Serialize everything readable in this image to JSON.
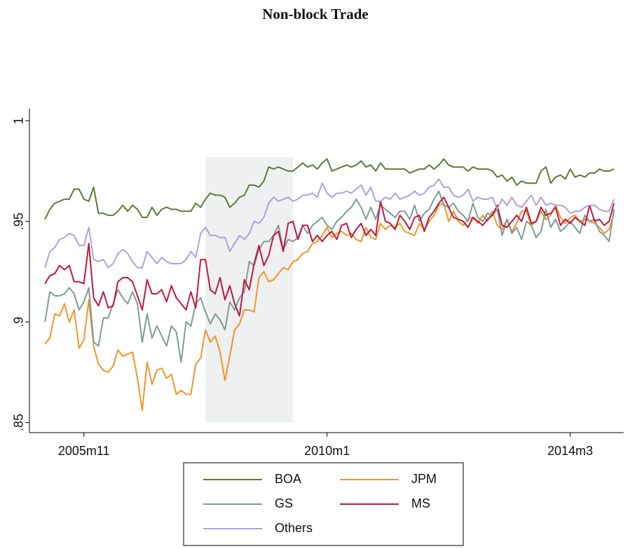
{
  "chart_data": {
    "type": "line",
    "title": "Non-block Trade",
    "x": [
      542,
      543,
      544,
      545,
      546,
      547,
      548,
      549,
      550,
      551,
      552,
      553,
      554,
      555,
      556,
      557,
      558,
      559,
      560,
      561,
      562,
      563,
      564,
      565,
      566,
      567,
      568,
      569,
      570,
      571,
      572,
      573,
      574,
      575,
      576,
      577,
      578,
      579,
      580,
      581,
      582,
      583,
      584,
      585,
      586,
      587,
      588,
      589,
      590,
      591,
      592,
      593,
      594,
      595,
      596,
      597,
      598,
      599,
      600,
      601,
      602,
      603,
      604,
      605,
      606,
      607,
      608,
      609,
      610,
      611,
      612,
      613,
      614,
      615,
      616,
      617,
      618,
      619,
      620,
      621,
      622,
      623,
      624,
      625,
      626,
      627,
      628,
      629,
      630,
      631,
      632,
      633,
      634,
      635,
      636,
      637,
      638,
      639,
      640,
      641,
      642,
      643,
      644,
      645,
      646,
      647,
      648,
      649,
      650,
      651,
      652,
      653,
      654,
      655,
      656,
      657,
      658,
      659
    ],
    "series": [
      {
        "name": "BOA",
        "color": "#5b7b36",
        "values": [
          0.951,
          0.956,
          0.959,
          0.96,
          0.961,
          0.961,
          0.966,
          0.966,
          0.961,
          0.96,
          0.967,
          0.954,
          0.954,
          0.953,
          0.953,
          0.955,
          0.958,
          0.955,
          0.958,
          0.956,
          0.952,
          0.952,
          0.957,
          0.953,
          0.956,
          0.957,
          0.956,
          0.956,
          0.955,
          0.955,
          0.955,
          0.959,
          0.957,
          0.961,
          0.964,
          0.963,
          0.963,
          0.962,
          0.957,
          0.959,
          0.962,
          0.963,
          0.968,
          0.968,
          0.967,
          0.97,
          0.977,
          0.976,
          0.977,
          0.976,
          0.975,
          0.975,
          0.977,
          0.979,
          0.977,
          0.978,
          0.976,
          0.979,
          0.981,
          0.975,
          0.976,
          0.977,
          0.978,
          0.977,
          0.978,
          0.98,
          0.977,
          0.978,
          0.975,
          0.979,
          0.976,
          0.976,
          0.976,
          0.976,
          0.976,
          0.974,
          0.975,
          0.976,
          0.976,
          0.978,
          0.976,
          0.978,
          0.981,
          0.978,
          0.977,
          0.977,
          0.977,
          0.975,
          0.977,
          0.976,
          0.976,
          0.976,
          0.975,
          0.972,
          0.973,
          0.97,
          0.972,
          0.968,
          0.97,
          0.969,
          0.969,
          0.969,
          0.975,
          0.977,
          0.969,
          0.972,
          0.973,
          0.971,
          0.976,
          0.972,
          0.973,
          0.972,
          0.974,
          0.974,
          0.976,
          0.975,
          0.975,
          0.976
        ]
      },
      {
        "name": "JPM",
        "color": "#f0962a",
        "values": [
          0.889,
          0.892,
          0.904,
          0.903,
          0.909,
          0.9,
          0.906,
          0.887,
          0.891,
          0.911,
          0.888,
          0.879,
          0.876,
          0.875,
          0.878,
          0.886,
          0.883,
          0.884,
          0.885,
          0.872,
          0.856,
          0.88,
          0.869,
          0.876,
          0.877,
          0.872,
          0.874,
          0.864,
          0.866,
          0.864,
          0.864,
          0.879,
          0.882,
          0.896,
          0.89,
          0.893,
          0.885,
          0.871,
          0.883,
          0.896,
          0.899,
          0.906,
          0.906,
          0.905,
          0.922,
          0.925,
          0.92,
          0.921,
          0.924,
          0.927,
          0.926,
          0.93,
          0.931,
          0.934,
          0.935,
          0.939,
          0.94,
          0.943,
          0.947,
          0.942,
          0.944,
          0.945,
          0.943,
          0.944,
          0.941,
          0.94,
          0.947,
          0.942,
          0.941,
          0.949,
          0.946,
          0.948,
          0.947,
          0.949,
          0.945,
          0.944,
          0.943,
          0.949,
          0.946,
          0.95,
          0.953,
          0.958,
          0.959,
          0.95,
          0.955,
          0.95,
          0.948,
          0.951,
          0.952,
          0.949,
          0.953,
          0.95,
          0.955,
          0.948,
          0.946,
          0.951,
          0.945,
          0.949,
          0.955,
          0.955,
          0.948,
          0.95,
          0.955,
          0.951,
          0.953,
          0.958,
          0.952,
          0.949,
          0.952,
          0.953,
          0.95,
          0.951,
          0.95,
          0.949,
          0.947,
          0.944,
          0.946,
          0.954
        ]
      },
      {
        "name": "GS",
        "color": "#7f9c92",
        "values": [
          0.9,
          0.915,
          0.913,
          0.913,
          0.914,
          0.917,
          0.914,
          0.906,
          0.91,
          0.917,
          0.89,
          0.888,
          0.902,
          0.902,
          0.909,
          0.916,
          0.912,
          0.909,
          0.915,
          0.909,
          0.89,
          0.904,
          0.892,
          0.898,
          0.893,
          0.888,
          0.898,
          0.895,
          0.88,
          0.9,
          0.898,
          0.909,
          0.912,
          0.905,
          0.899,
          0.904,
          0.901,
          0.896,
          0.91,
          0.906,
          0.912,
          0.915,
          0.93,
          0.928,
          0.936,
          0.94,
          0.94,
          0.943,
          0.948,
          0.936,
          0.941,
          0.94,
          0.942,
          0.948,
          0.944,
          0.948,
          0.95,
          0.952,
          0.948,
          0.946,
          0.95,
          0.952,
          0.955,
          0.957,
          0.961,
          0.957,
          0.951,
          0.957,
          0.951,
          0.958,
          0.956,
          0.954,
          0.952,
          0.955,
          0.955,
          0.951,
          0.958,
          0.95,
          0.954,
          0.956,
          0.961,
          0.965,
          0.958,
          0.957,
          0.959,
          0.955,
          0.953,
          0.95,
          0.959,
          0.952,
          0.95,
          0.954,
          0.953,
          0.956,
          0.943,
          0.951,
          0.944,
          0.947,
          0.941,
          0.95,
          0.948,
          0.942,
          0.945,
          0.956,
          0.947,
          0.951,
          0.945,
          0.947,
          0.95,
          0.947,
          0.944,
          0.953,
          0.95,
          0.951,
          0.945,
          0.943,
          0.94,
          0.956
        ]
      },
      {
        "name": "MS",
        "color": "#c0183f",
        "values": [
          0.919,
          0.923,
          0.924,
          0.928,
          0.926,
          0.928,
          0.92,
          0.92,
          0.919,
          0.939,
          0.912,
          0.908,
          0.915,
          0.907,
          0.908,
          0.92,
          0.922,
          0.922,
          0.92,
          0.913,
          0.906,
          0.921,
          0.914,
          0.914,
          0.916,
          0.91,
          0.918,
          0.912,
          0.909,
          0.906,
          0.915,
          0.907,
          0.931,
          0.931,
          0.916,
          0.914,
          0.922,
          0.911,
          0.918,
          0.909,
          0.903,
          0.921,
          0.916,
          0.929,
          0.938,
          0.928,
          0.933,
          0.943,
          0.945,
          0.935,
          0.949,
          0.95,
          0.941,
          0.948,
          0.948,
          0.94,
          0.943,
          0.94,
          0.943,
          0.945,
          0.941,
          0.948,
          0.949,
          0.942,
          0.946,
          0.949,
          0.943,
          0.946,
          0.943,
          0.96,
          0.95,
          0.949,
          0.946,
          0.953,
          0.95,
          0.946,
          0.952,
          0.953,
          0.945,
          0.952,
          0.955,
          0.959,
          0.962,
          0.957,
          0.952,
          0.951,
          0.95,
          0.947,
          0.952,
          0.95,
          0.948,
          0.951,
          0.953,
          0.958,
          0.948,
          0.947,
          0.95,
          0.953,
          0.95,
          0.957,
          0.949,
          0.95,
          0.957,
          0.953,
          0.954,
          0.957,
          0.948,
          0.951,
          0.949,
          0.952,
          0.95,
          0.948,
          0.958,
          0.95,
          0.951,
          0.948,
          0.95,
          0.959
        ]
      },
      {
        "name": "Others",
        "color": "#a9a4dc",
        "values": [
          0.927,
          0.935,
          0.937,
          0.941,
          0.942,
          0.944,
          0.943,
          0.938,
          0.938,
          0.947,
          0.931,
          0.93,
          0.931,
          0.927,
          0.929,
          0.934,
          0.936,
          0.934,
          0.93,
          0.927,
          0.927,
          0.935,
          0.932,
          0.929,
          0.932,
          0.93,
          0.929,
          0.929,
          0.929,
          0.931,
          0.935,
          0.932,
          0.944,
          0.947,
          0.943,
          0.943,
          0.942,
          0.942,
          0.935,
          0.939,
          0.943,
          0.941,
          0.944,
          0.95,
          0.949,
          0.952,
          0.959,
          0.962,
          0.96,
          0.961,
          0.962,
          0.96,
          0.961,
          0.963,
          0.963,
          0.964,
          0.962,
          0.969,
          0.964,
          0.962,
          0.964,
          0.964,
          0.965,
          0.964,
          0.966,
          0.968,
          0.963,
          0.967,
          0.96,
          0.96,
          0.962,
          0.961,
          0.964,
          0.961,
          0.962,
          0.963,
          0.965,
          0.963,
          0.964,
          0.967,
          0.968,
          0.971,
          0.967,
          0.967,
          0.963,
          0.962,
          0.963,
          0.966,
          0.96,
          0.962,
          0.961,
          0.961,
          0.962,
          0.956,
          0.961,
          0.958,
          0.962,
          0.958,
          0.957,
          0.96,
          0.963,
          0.958,
          0.962,
          0.958,
          0.959,
          0.958,
          0.958,
          0.957,
          0.954,
          0.955,
          0.955,
          0.957,
          0.958,
          0.958,
          0.956,
          0.955,
          0.955,
          0.961
        ]
      }
    ],
    "shaded_regions": [
      {
        "x0": 575,
        "x1": 593,
        "y0": 0.85,
        "y1": 0.982,
        "color": "#eef0f2"
      }
    ],
    "xlim": [
      538.8,
      661
    ],
    "xticks": [
      {
        "value": 550,
        "label": "2005m11"
      },
      {
        "value": 600,
        "label": "2010m1"
      },
      {
        "value": 650,
        "label": "2014m3"
      }
    ],
    "ylim": [
      0.845,
      1.006
    ],
    "yticks": [
      {
        "value": 0.85,
        "label": ".85"
      },
      {
        "value": 0.9,
        "label": ".9"
      },
      {
        "value": 0.95,
        "label": ".95"
      },
      1
    ],
    "grid": false,
    "legend": "bottom"
  }
}
